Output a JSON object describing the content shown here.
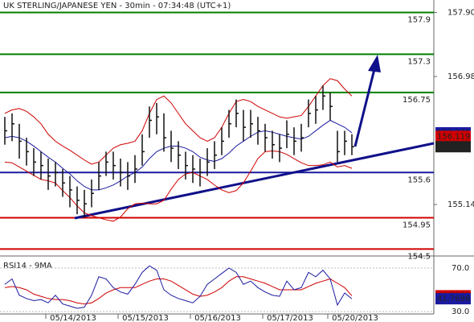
{
  "chart_data": {
    "type": "ohlc",
    "title": "UK STERLING/JAPANESE YEN - 30min - 07:34:48 (UTC+1)",
    "categories": [
      null,
      null,
      null,
      null,
      null,
      null,
      null,
      null,
      null,
      "05/14/2013",
      null,
      null,
      null,
      null,
      null,
      null,
      null,
      null,
      null,
      "05/15/2013",
      null,
      null,
      null,
      null,
      null,
      null,
      null,
      null,
      null,
      "05/16/2013",
      null,
      null,
      null,
      null,
      null,
      null,
      null,
      null,
      null,
      "05/17/2013",
      null,
      null,
      null,
      null,
      null,
      null,
      null,
      null,
      "05/20/2013"
    ],
    "high": [
      156.4,
      156.45,
      156.3,
      156.1,
      155.95,
      155.9,
      155.8,
      155.75,
      155.65,
      155.55,
      155.4,
      155.35,
      155.5,
      155.75,
      155.9,
      155.9,
      155.8,
      155.75,
      155.85,
      156.15,
      156.55,
      156.6,
      156.45,
      156.2,
      156.05,
      155.9,
      155.85,
      155.8,
      155.95,
      156.05,
      156.25,
      156.5,
      156.65,
      156.5,
      156.5,
      156.4,
      156.3,
      156.2,
      156.15,
      156.35,
      156.25,
      156.3,
      156.65,
      156.7,
      156.85,
      156.75,
      156.2,
      156.2,
      156.15
    ],
    "low": [
      156.0,
      156.05,
      155.8,
      155.7,
      155.55,
      155.5,
      155.35,
      155.4,
      155.25,
      155.1,
      155.0,
      154.95,
      155.1,
      155.35,
      155.55,
      155.5,
      155.4,
      155.35,
      155.45,
      155.7,
      156.1,
      156.15,
      155.9,
      155.75,
      155.65,
      155.5,
      155.45,
      155.4,
      155.55,
      155.65,
      155.85,
      156.1,
      156.25,
      156.05,
      156.1,
      156.0,
      155.9,
      155.8,
      155.75,
      155.95,
      155.85,
      155.9,
      156.25,
      156.3,
      156.5,
      156.35,
      155.75,
      155.85,
      155.85
    ],
    "close": {
      "color": "#111111",
      "values": [
        156.2,
        156.3,
        156.05,
        155.9,
        155.75,
        155.7,
        155.55,
        155.6,
        155.45,
        155.35,
        155.2,
        155.15,
        155.3,
        155.55,
        155.75,
        155.7,
        155.6,
        155.55,
        155.65,
        155.9,
        156.35,
        156.4,
        156.1,
        155.95,
        155.85,
        155.7,
        155.65,
        155.6,
        155.75,
        155.85,
        156.05,
        156.3,
        156.45,
        156.25,
        156.3,
        156.2,
        156.1,
        156.0,
        155.95,
        156.15,
        156.05,
        156.1,
        156.45,
        156.5,
        156.7,
        156.55,
        155.9,
        156.05,
        155.971
      ]
    },
    "moving_average": {
      "color": "#1a1aa0",
      "values": [
        156.1,
        156.12,
        156.1,
        156.05,
        155.98,
        155.9,
        155.82,
        155.75,
        155.66,
        155.58,
        155.48,
        155.4,
        155.35,
        155.35,
        155.38,
        155.42,
        155.48,
        155.55,
        155.6,
        155.68,
        155.8,
        155.9,
        155.95,
        155.98,
        155.98,
        155.95,
        155.9,
        155.82,
        155.78,
        155.76,
        155.8,
        155.88,
        155.98,
        156.05,
        156.12,
        156.18,
        156.2,
        156.18,
        156.15,
        156.12,
        156.1,
        156.08,
        156.12,
        156.2,
        156.28,
        156.35,
        156.3,
        156.25,
        156.171
      ]
    },
    "upper_band": {
      "color": "#d00000",
      "values": [
        156.45,
        156.5,
        156.52,
        156.48,
        156.4,
        156.3,
        156.15,
        156.05,
        155.98,
        155.92,
        155.85,
        155.78,
        155.72,
        155.75,
        155.85,
        155.95,
        156.0,
        156.02,
        156.05,
        156.2,
        156.45,
        156.65,
        156.7,
        156.6,
        156.45,
        156.3,
        156.2,
        156.1,
        156.05,
        156.1,
        156.25,
        156.45,
        156.62,
        156.65,
        156.62,
        156.55,
        156.5,
        156.45,
        156.4,
        156.38,
        156.4,
        156.42,
        156.55,
        156.7,
        156.85,
        156.95,
        156.92,
        156.8,
        156.7
      ]
    },
    "lower_band": {
      "color": "#d00000",
      "values": [
        155.75,
        155.74,
        155.68,
        155.62,
        155.56,
        155.5,
        155.48,
        155.45,
        155.34,
        155.24,
        155.12,
        155.02,
        154.98,
        154.95,
        154.92,
        154.9,
        154.96,
        155.08,
        155.15,
        155.16,
        155.15,
        155.15,
        155.2,
        155.36,
        155.5,
        155.58,
        155.6,
        155.55,
        155.5,
        155.42,
        155.35,
        155.31,
        155.34,
        155.45,
        155.62,
        155.8,
        155.9,
        155.91,
        155.9,
        155.86,
        155.8,
        155.74,
        155.7,
        155.7,
        155.71,
        155.75,
        155.68,
        155.7,
        155.66
      ]
    },
    "extra_level": {
      "value": 156.119,
      "color": "#d00000"
    },
    "levels": [
      {
        "value": 157.9,
        "color": "#008000"
      },
      {
        "value": 157.3,
        "color": "#008000"
      },
      {
        "value": 156.75,
        "color": "#008000"
      },
      {
        "value": 155.6,
        "color": "#1a1aa0"
      },
      {
        "value": 154.95,
        "color": "#d00000"
      },
      {
        "value": 154.5,
        "color": "#d00000"
      }
    ],
    "ylim": [
      154.4,
      158.08
    ],
    "yticks": [
      {
        "value": 157.9,
        "label": "157.90"
      },
      156.98,
      155.14
    ],
    "rsi_title": "RSI14 - 9MA",
    "rsi": {
      "color": "#1a1aa0",
      "values": [
        55,
        60,
        45,
        42,
        40,
        41,
        38,
        45,
        37,
        35,
        33,
        34,
        45,
        62,
        60,
        52,
        48,
        46,
        55,
        66,
        72,
        68,
        50,
        45,
        42,
        40,
        38,
        44,
        55,
        60,
        65,
        70,
        66,
        55,
        58,
        52,
        48,
        45,
        44,
        58,
        50,
        52,
        66,
        62,
        68,
        60,
        36,
        47,
        41.7696
      ]
    },
    "rsi_ma": {
      "color": "#d00000",
      "values": [
        52,
        53,
        52,
        50,
        46,
        44,
        42,
        41,
        41,
        40,
        38,
        37,
        38,
        42,
        47,
        50,
        52,
        52,
        52,
        55,
        58,
        60,
        60,
        58,
        54,
        50,
        46,
        44,
        45,
        48,
        52,
        58,
        62,
        62,
        60,
        58,
        56,
        53,
        50,
        50,
        50,
        50,
        53,
        56,
        58,
        60,
        56,
        52,
        44.5111
      ]
    },
    "rsi_ylim": [
      27.8,
      78.1
    ],
    "rsi_yticks": [
      {
        "value": 70,
        "label": "70.0"
      },
      {
        "value": 30,
        "label": "30.0"
      }
    ]
  }
}
